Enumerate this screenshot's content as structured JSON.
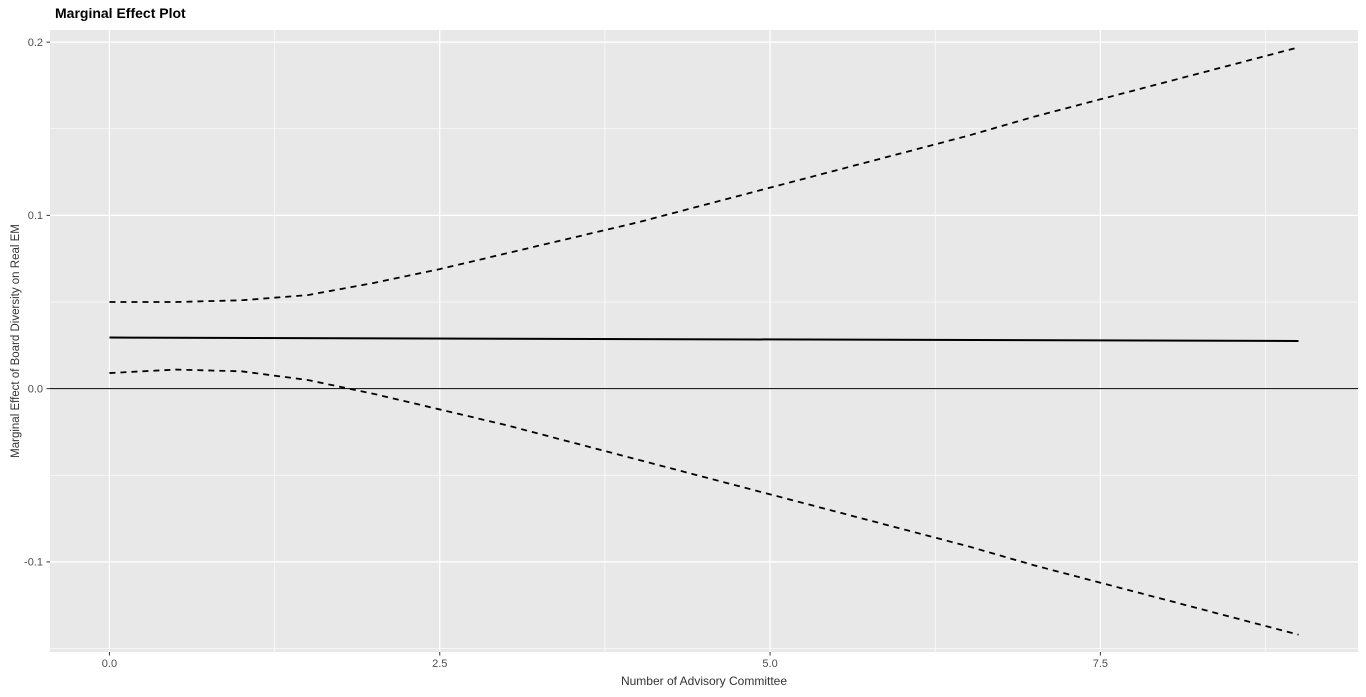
{
  "chart_data": {
    "type": "line",
    "title": "Marginal Effect Plot",
    "xlabel": "Number of Advisory Committee",
    "ylabel": "Marginal Effect of Board Diversity on Real EM",
    "xlim": [
      -0.45,
      9.45
    ],
    "ylim": [
      -0.152,
      0.207
    ],
    "x_ticks": [
      0.0,
      2.5,
      5.0,
      7.5
    ],
    "x_tick_labels": [
      "0.0",
      "2.5",
      "5.0",
      "7.5"
    ],
    "y_ticks": [
      -0.1,
      0.0,
      0.1,
      0.2
    ],
    "y_tick_labels": [
      "-0.1",
      "0.0",
      "0.1",
      "0.2"
    ],
    "panel_background": "#E8E8E8",
    "grid_color": "#FFFFFF",
    "line_color": "#000000",
    "tick_text_color": "#4D4D4D",
    "reference_line_y": 0,
    "legend": "none",
    "grid": "on",
    "series": [
      {
        "name": "marginal-effect",
        "style": "solid",
        "x": [
          0,
          9
        ],
        "y": [
          0.0295,
          0.0275
        ]
      },
      {
        "name": "upper-confidence-bound",
        "style": "dashed",
        "x": [
          0,
          0.5,
          1,
          1.5,
          2,
          2.5,
          3,
          3.5,
          4,
          4.5,
          5,
          5.5,
          6,
          6.5,
          7,
          7.5,
          8,
          8.5,
          9
        ],
        "y": [
          0.05,
          0.05,
          0.051,
          0.054,
          0.061,
          0.069,
          0.078,
          0.087,
          0.096,
          0.106,
          0.116,
          0.126,
          0.136,
          0.146,
          0.157,
          0.167,
          0.177,
          0.187,
          0.197
        ]
      },
      {
        "name": "lower-confidence-bound",
        "style": "dashed",
        "x": [
          0,
          0.5,
          1,
          1.5,
          2,
          2.5,
          3,
          3.5,
          4,
          4.5,
          5,
          5.5,
          6,
          6.5,
          7,
          7.5,
          8,
          8.5,
          9
        ],
        "y": [
          0.009,
          0.011,
          0.01,
          0.005,
          -0.003,
          -0.012,
          -0.021,
          -0.031,
          -0.041,
          -0.051,
          -0.061,
          -0.071,
          -0.081,
          -0.091,
          -0.102,
          -0.112,
          -0.122,
          -0.132,
          -0.142
        ]
      }
    ]
  }
}
